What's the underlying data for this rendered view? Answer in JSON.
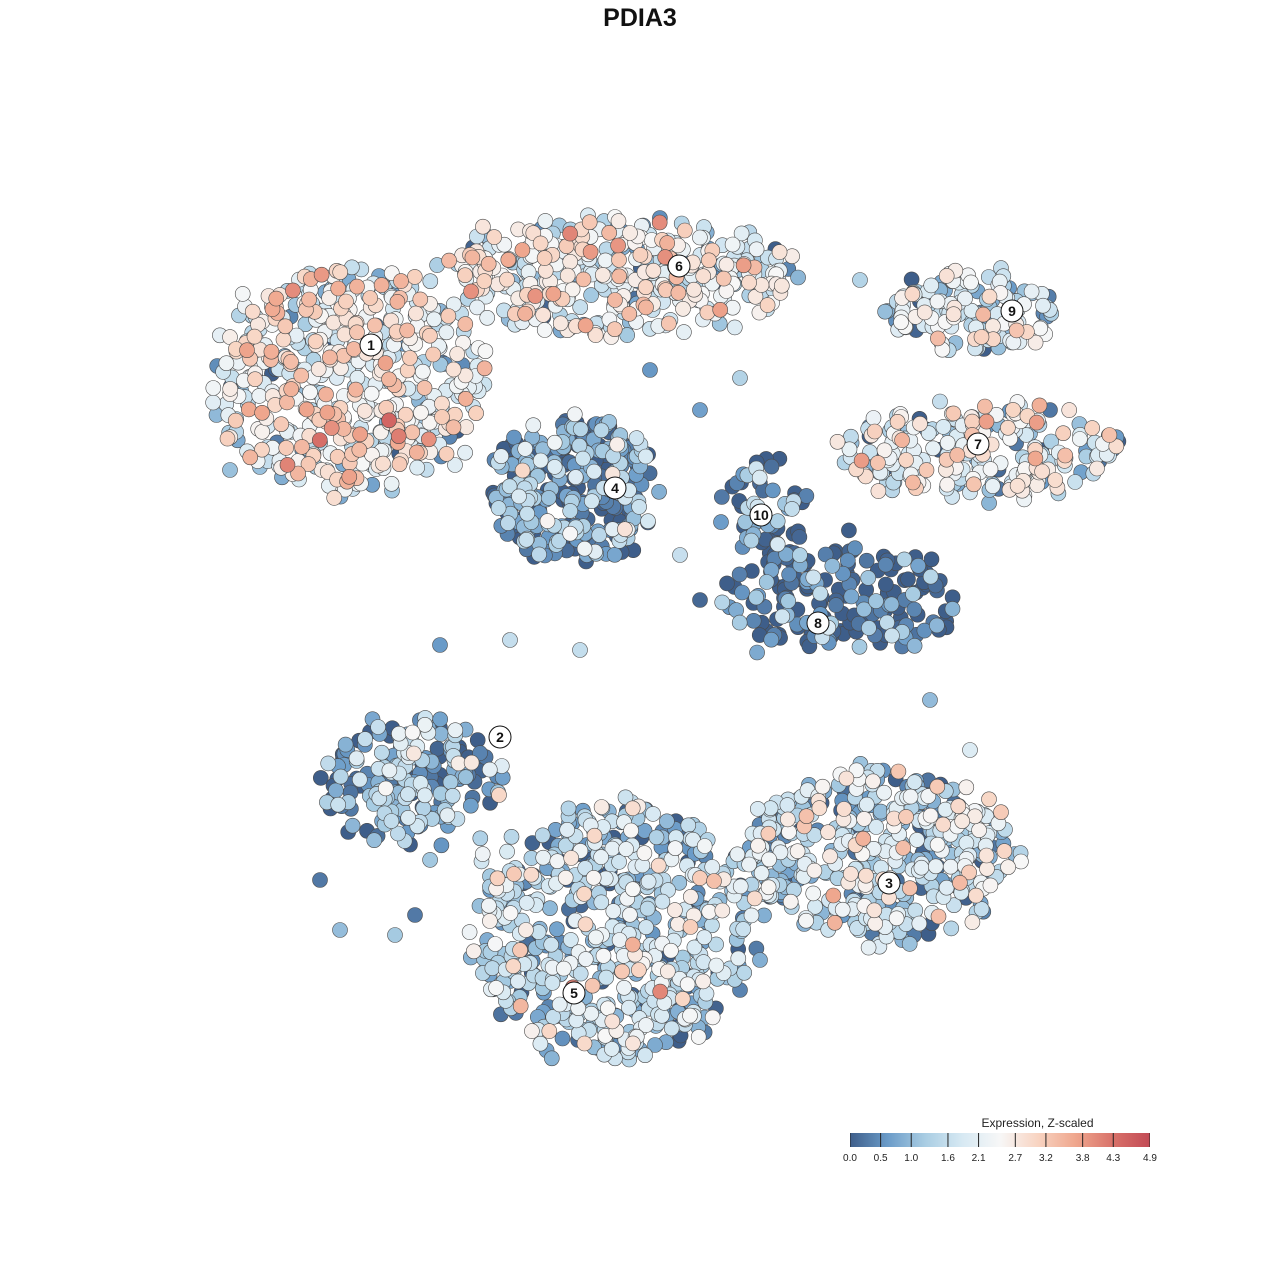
{
  "chart_data": {
    "type": "scatter",
    "title": "PDIA3",
    "legend": {
      "title": "Expression, Z-scaled",
      "placement": "bottom-right",
      "ticks": [
        "0.0",
        "0.5",
        "1.0",
        "1.6",
        "2.1",
        "2.7",
        "3.2",
        "3.8",
        "4.3",
        "4.9"
      ],
      "range": [
        0.0,
        4.9
      ],
      "colors": [
        "#3E5E8A",
        "#6A9BC8",
        "#A9CDE3",
        "#D7E9F3",
        "#F7F7F7",
        "#F8D4C2",
        "#EFA78E",
        "#D9726A",
        "#C24A55"
      ]
    },
    "clusters": [
      {
        "label": "1",
        "mean_expression": 2.5
      },
      {
        "label": "2",
        "mean_expression": 1.0
      },
      {
        "label": "3",
        "mean_expression": 1.7
      },
      {
        "label": "4",
        "mean_expression": 0.8
      },
      {
        "label": "5",
        "mean_expression": 1.6
      },
      {
        "label": "6",
        "mean_expression": 2.3
      },
      {
        "label": "7",
        "mean_expression": 2.2
      },
      {
        "label": "8",
        "mean_expression": 0.3
      },
      {
        "label": "9",
        "mean_expression": 1.8
      },
      {
        "label": "10",
        "mean_expression": 0.6
      }
    ],
    "grid": false,
    "axes_visible": false
  }
}
